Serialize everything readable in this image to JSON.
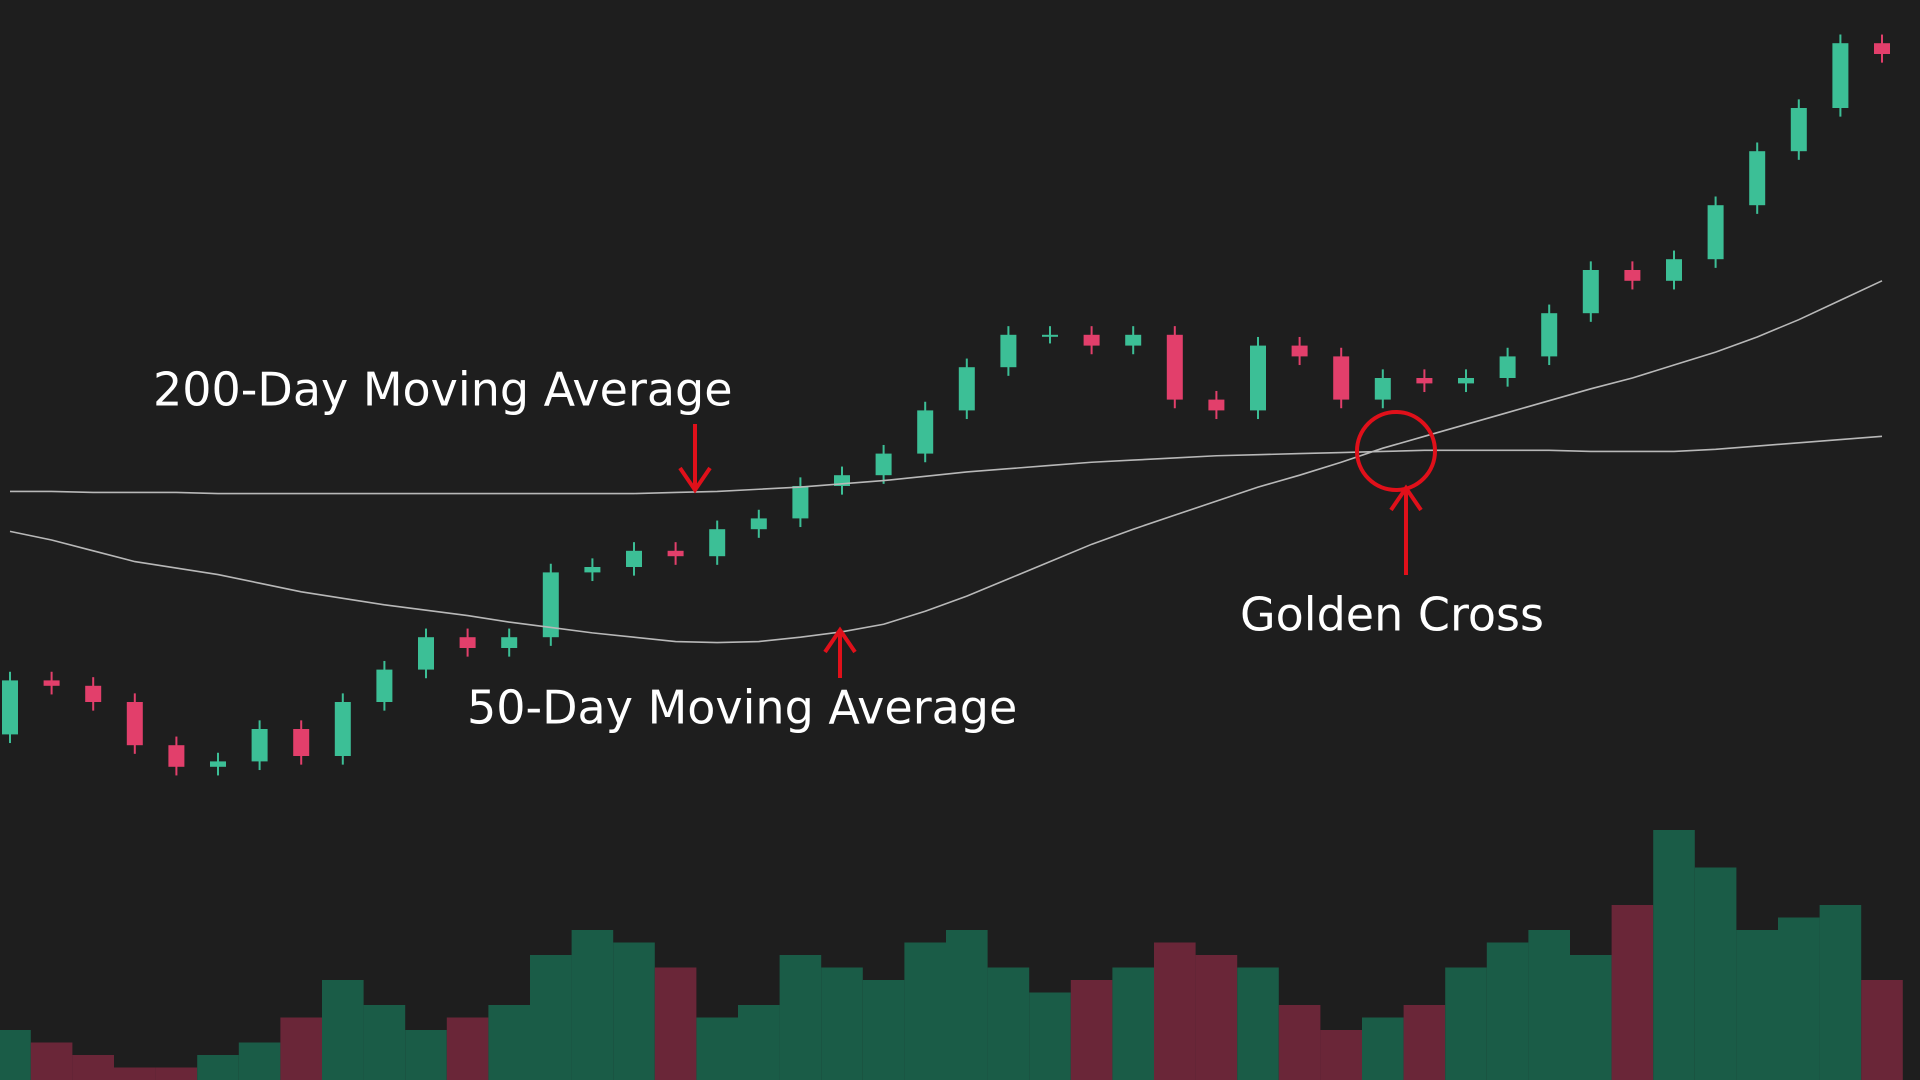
{
  "chart_data": {
    "type": "candlestick",
    "open": [
      32,
      37,
      36.5,
      35,
      31,
      29,
      29.5,
      32.5,
      30,
      35,
      38,
      41,
      40,
      41,
      47,
      47.5,
      49,
      48.5,
      51,
      52,
      55,
      56,
      58,
      62,
      66,
      69,
      69,
      68,
      69,
      63,
      62,
      68,
      67,
      63,
      65,
      64.5,
      65,
      67,
      71,
      75,
      74,
      76,
      81,
      86,
      90,
      96
    ],
    "high": [
      37.8,
      37.8,
      37.3,
      35.8,
      31.8,
      30.3,
      33.3,
      33.3,
      35.8,
      38.8,
      41.8,
      41.8,
      41.8,
      47.8,
      48.3,
      49.8,
      49.8,
      51.8,
      52.8,
      55.8,
      56.8,
      58.8,
      62.8,
      66.8,
      69.8,
      69.8,
      69.8,
      69.8,
      69.8,
      63.8,
      68.8,
      68.8,
      67.8,
      65.8,
      65.8,
      65.8,
      67.8,
      71.8,
      75.8,
      75.8,
      76.8,
      81.8,
      86.8,
      90.8,
      96.8,
      96.8
    ],
    "low": [
      31.2,
      35.7,
      34.2,
      30.2,
      28.2,
      28.2,
      28.7,
      29.2,
      29.2,
      34.2,
      37.2,
      39.2,
      39.2,
      40.2,
      46.2,
      46.7,
      47.7,
      47.7,
      50.2,
      51.2,
      54.2,
      55.2,
      57.2,
      61.2,
      65.2,
      68.2,
      67.2,
      67.2,
      62.2,
      61.2,
      61.2,
      66.2,
      62.2,
      62.2,
      63.7,
      63.7,
      64.2,
      66.2,
      70.2,
      73.2,
      73.2,
      75.2,
      80.2,
      85.2,
      89.2,
      94.2
    ],
    "close": [
      37,
      36.5,
      35,
      31,
      29,
      29.5,
      32.5,
      30,
      35,
      38,
      41,
      40,
      41,
      47,
      47.5,
      49,
      48.5,
      51,
      52,
      55,
      56,
      58,
      62,
      66,
      69,
      69,
      68,
      69,
      63,
      62,
      68,
      67,
      63,
      65,
      64.5,
      65,
      67,
      71,
      75,
      74,
      76,
      81,
      86,
      90,
      96,
      95
    ],
    "volume": [
      20,
      15,
      10,
      5,
      5,
      10,
      15,
      25,
      40,
      30,
      20,
      25,
      30,
      50,
      60,
      55,
      45,
      25,
      30,
      50,
      45,
      40,
      55,
      60,
      45,
      35,
      40,
      45,
      55,
      50,
      45,
      30,
      20,
      25,
      30,
      45,
      55,
      60,
      50,
      70,
      100,
      85,
      60,
      65,
      70,
      40
    ],
    "ylim": [
      0,
      100
    ],
    "volume_ylim": [
      0,
      100
    ],
    "up_color": "#3cbf96",
    "down_color": "#e23f6b",
    "volume_up_color": "#1a5c47",
    "volume_down_color": "#6a2638",
    "series": [
      {
        "name": "200-Day Moving Average",
        "color": "#b8b8b8",
        "values": [
          54.5,
          54.5,
          54.4,
          54.4,
          54.4,
          54.3,
          54.3,
          54.3,
          54.3,
          54.3,
          54.3,
          54.3,
          54.3,
          54.3,
          54.3,
          54.3,
          54.4,
          54.5,
          54.7,
          54.9,
          55.2,
          55.5,
          55.9,
          56.3,
          56.6,
          56.9,
          57.2,
          57.4,
          57.6,
          57.8,
          57.9,
          58.0,
          58.1,
          58.2,
          58.3,
          58.3,
          58.3,
          58.3,
          58.2,
          58.2,
          58.2,
          58.4,
          58.7,
          59.0,
          59.3,
          59.6
        ]
      },
      {
        "name": "50-Day Moving Average",
        "color": "#b8b8b8",
        "values": [
          50.8,
          50.0,
          49.0,
          48.0,
          47.4,
          46.8,
          46.0,
          45.2,
          44.6,
          44.0,
          43.5,
          43.0,
          42.4,
          41.9,
          41.4,
          41.0,
          40.6,
          40.5,
          40.6,
          41.0,
          41.5,
          42.2,
          43.4,
          44.8,
          46.4,
          48.0,
          49.6,
          51.0,
          52.3,
          53.6,
          54.9,
          56.0,
          57.2,
          58.5,
          59.6,
          60.7,
          61.8,
          62.9,
          64.0,
          65.0,
          66.2,
          67.4,
          68.8,
          70.4,
          72.2,
          74.0
        ]
      }
    ],
    "annotation": "Golden Cross"
  }
}
